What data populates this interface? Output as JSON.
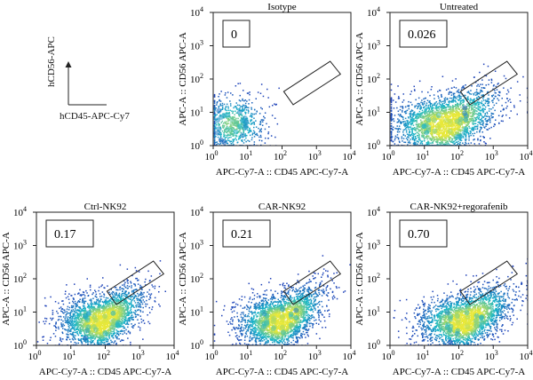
{
  "legend_axes": {
    "y_label": "hCD56-APC",
    "x_label": "hCD45-APC-Cy7"
  },
  "colors": {
    "density_low": "#1f3fb8",
    "density_mid": "#19b6c9",
    "density_high": "#e8e83a",
    "gate_stroke": "#222222"
  },
  "chart_data": [
    {
      "type": "scatter",
      "title": "Isotype",
      "xlabel": "APC-Cy7-A :: CD45 APC-Cy7-A",
      "ylabel": "APC-A :: CD56 APC-A",
      "xscale": "log",
      "yscale": "log",
      "xlim": [
        1,
        10000
      ],
      "ylim": [
        1,
        10000
      ],
      "tick_values": [
        1,
        10,
        100,
        1000,
        10000
      ],
      "tick_labels": [
        "10^0",
        "10^1",
        "10^2",
        "10^3",
        "10^4"
      ],
      "gate_percent": "0",
      "gate_polygon": [
        [
          112,
          42
        ],
        [
          2500,
          340
        ],
        [
          5000,
          140
        ],
        [
          210,
          17
        ]
      ],
      "population": {
        "center": [
          3.5,
          4.5
        ],
        "spread": [
          0.5,
          0.45
        ],
        "density": "low"
      }
    },
    {
      "type": "scatter",
      "title": "Untreated",
      "xlabel": "APC-Cy7-A :: CD45 APC-Cy7-A",
      "ylabel": "APC-A :: CD56 APC-A",
      "xscale": "log",
      "yscale": "log",
      "xlim": [
        1,
        10000
      ],
      "ylim": [
        1,
        10000
      ],
      "tick_values": [
        1,
        10,
        100,
        1000,
        10000
      ],
      "tick_labels": [
        "10^0",
        "10^1",
        "10^2",
        "10^3",
        "10^4"
      ],
      "gate_percent": "0.026",
      "gate_polygon": [
        [
          112,
          42
        ],
        [
          2500,
          340
        ],
        [
          5000,
          140
        ],
        [
          210,
          17
        ]
      ],
      "population": {
        "center": [
          40,
          4
        ],
        "spread": [
          0.75,
          0.45
        ],
        "density": "high"
      }
    },
    {
      "type": "scatter",
      "title": "Ctrl-NK92",
      "xlabel": "APC-Cy7-A :: CD45 APC-Cy7-A",
      "ylabel": "APC-A :: CD56 APC-A",
      "xscale": "log",
      "yscale": "log",
      "xlim": [
        1,
        10000
      ],
      "ylim": [
        1,
        10000
      ],
      "tick_values": [
        1,
        10,
        100,
        1000,
        10000
      ],
      "tick_labels": [
        "10^0",
        "10^1",
        "10^2",
        "10^3",
        "10^4"
      ],
      "gate_percent": "0.17",
      "gate_polygon": [
        [
          112,
          42
        ],
        [
          2500,
          340
        ],
        [
          5000,
          140
        ],
        [
          210,
          17
        ]
      ],
      "population": {
        "center": [
          80,
          5
        ],
        "spread": [
          0.6,
          0.4
        ],
        "density": "high"
      }
    },
    {
      "type": "scatter",
      "title": "CAR-NK92",
      "xlabel": "APC-Cy7-A :: CD45 APC-Cy7-A",
      "ylabel": "APC-A :: CD56 APC-A",
      "xscale": "log",
      "yscale": "log",
      "xlim": [
        1,
        10000
      ],
      "ylim": [
        1,
        10000
      ],
      "tick_values": [
        1,
        10,
        100,
        1000,
        10000
      ],
      "tick_labels": [
        "10^0",
        "10^1",
        "10^2",
        "10^3",
        "10^4"
      ],
      "gate_percent": "0.21",
      "gate_polygon": [
        [
          112,
          42
        ],
        [
          2500,
          340
        ],
        [
          5000,
          140
        ],
        [
          210,
          17
        ]
      ],
      "population": {
        "center": [
          90,
          5
        ],
        "spread": [
          0.6,
          0.4
        ],
        "density": "high"
      }
    },
    {
      "type": "scatter",
      "title": "CAR-NK92+regorafenib",
      "xlabel": "APC-Cy7-A :: CD45 APC-Cy7-A",
      "ylabel": "APC-A :: CD56 APC-A",
      "xscale": "log",
      "yscale": "log",
      "xlim": [
        1,
        10000
      ],
      "ylim": [
        1,
        10000
      ],
      "tick_values": [
        1,
        10,
        100,
        1000,
        10000
      ],
      "tick_labels": [
        "10^0",
        "10^1",
        "10^2",
        "10^3",
        "10^4"
      ],
      "gate_percent": "0.70",
      "gate_polygon": [
        [
          112,
          42
        ],
        [
          2500,
          340
        ],
        [
          5000,
          140
        ],
        [
          210,
          17
        ]
      ],
      "population": {
        "center": [
          150,
          5
        ],
        "spread": [
          0.65,
          0.4
        ],
        "density": "high"
      }
    }
  ]
}
